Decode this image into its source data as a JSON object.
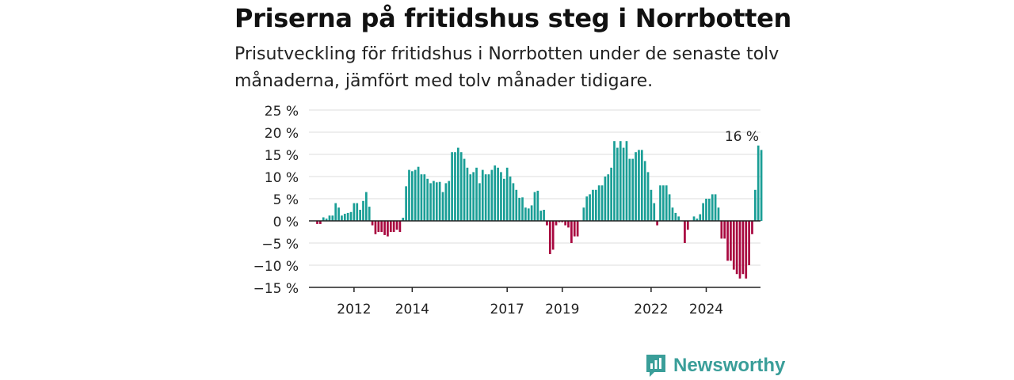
{
  "title": "Priserna på fritidshus steg i Norrbotten",
  "subtitle": "Prisutveckling för fritidshus i Norrbotten under de senaste tolv månaderna, jämfört med tolv månader tidigare.",
  "brand": "Newsworthy",
  "colors": {
    "positive": "#1a9e96",
    "negative": "#a8073f",
    "grid": "#dddddd",
    "axis": "#222222",
    "brand": "#3a9e99"
  },
  "chart_data": {
    "type": "bar",
    "ylim": [
      -15,
      25
    ],
    "yticks": [
      -15,
      -10,
      -5,
      0,
      5,
      10,
      15,
      20,
      25
    ],
    "ytick_labels": [
      "−15 %",
      "−10 %",
      "−5 %",
      "0 %",
      "5 %",
      "10 %",
      "15 %",
      "20 %",
      "25 %"
    ],
    "xticks": [
      "2012",
      "2014",
      "2017",
      "2019",
      "2022",
      "2024"
    ],
    "xtick_start_index": 12,
    "xtick_labels": {
      "12": "2012",
      "31": "2014",
      "62": "2017",
      "80": "2019",
      "109": "2022",
      "127": "2024"
    },
    "annotation": {
      "text": "16 %",
      "index": 139
    },
    "values": [
      -0.7,
      -0.7,
      0.8,
      0.5,
      1.2,
      1.2,
      4,
      3,
      1.2,
      1.6,
      1.8,
      2,
      4,
      4,
      2.5,
      4.5,
      6.5,
      3.2,
      -1,
      -3,
      -2.5,
      -2.5,
      -3.2,
      -3.5,
      -2.5,
      -2.5,
      -2,
      -2.5,
      0.7,
      7.8,
      11.5,
      11.2,
      11.5,
      12.2,
      10.5,
      10.5,
      9.5,
      8.5,
      9,
      8.7,
      8.8,
      6.5,
      8.5,
      9,
      15.5,
      15.5,
      16.5,
      15.5,
      14,
      12,
      10.5,
      11,
      12,
      8.5,
      11.5,
      10.5,
      10.5,
      11.5,
      12.5,
      12,
      11,
      9.5,
      12,
      10,
      8.5,
      7,
      5.2,
      5.3,
      3,
      2.8,
      3.5,
      6.5,
      6.8,
      2.3,
      2.5,
      -1,
      -7.5,
      -6.5,
      -1,
      -0.3,
      -0.3,
      -1,
      -1.5,
      -5,
      -3.5,
      -3.5,
      0,
      3,
      5.5,
      6,
      7,
      7,
      8,
      8,
      10,
      10.5,
      12,
      18,
      16.5,
      18,
      16.5,
      18,
      14,
      14,
      15.5,
      16,
      16,
      13.5,
      11,
      7,
      4,
      -1,
      8,
      8,
      8,
      6,
      3,
      1.8,
      1,
      0,
      -5,
      -2,
      0,
      1,
      0.5,
      1.5,
      4,
      5,
      5,
      6,
      6,
      3,
      -4,
      -4,
      -9,
      -9,
      -11,
      -12,
      -13,
      -12,
      -13,
      -10,
      -3,
      7,
      17,
      16
    ]
  }
}
